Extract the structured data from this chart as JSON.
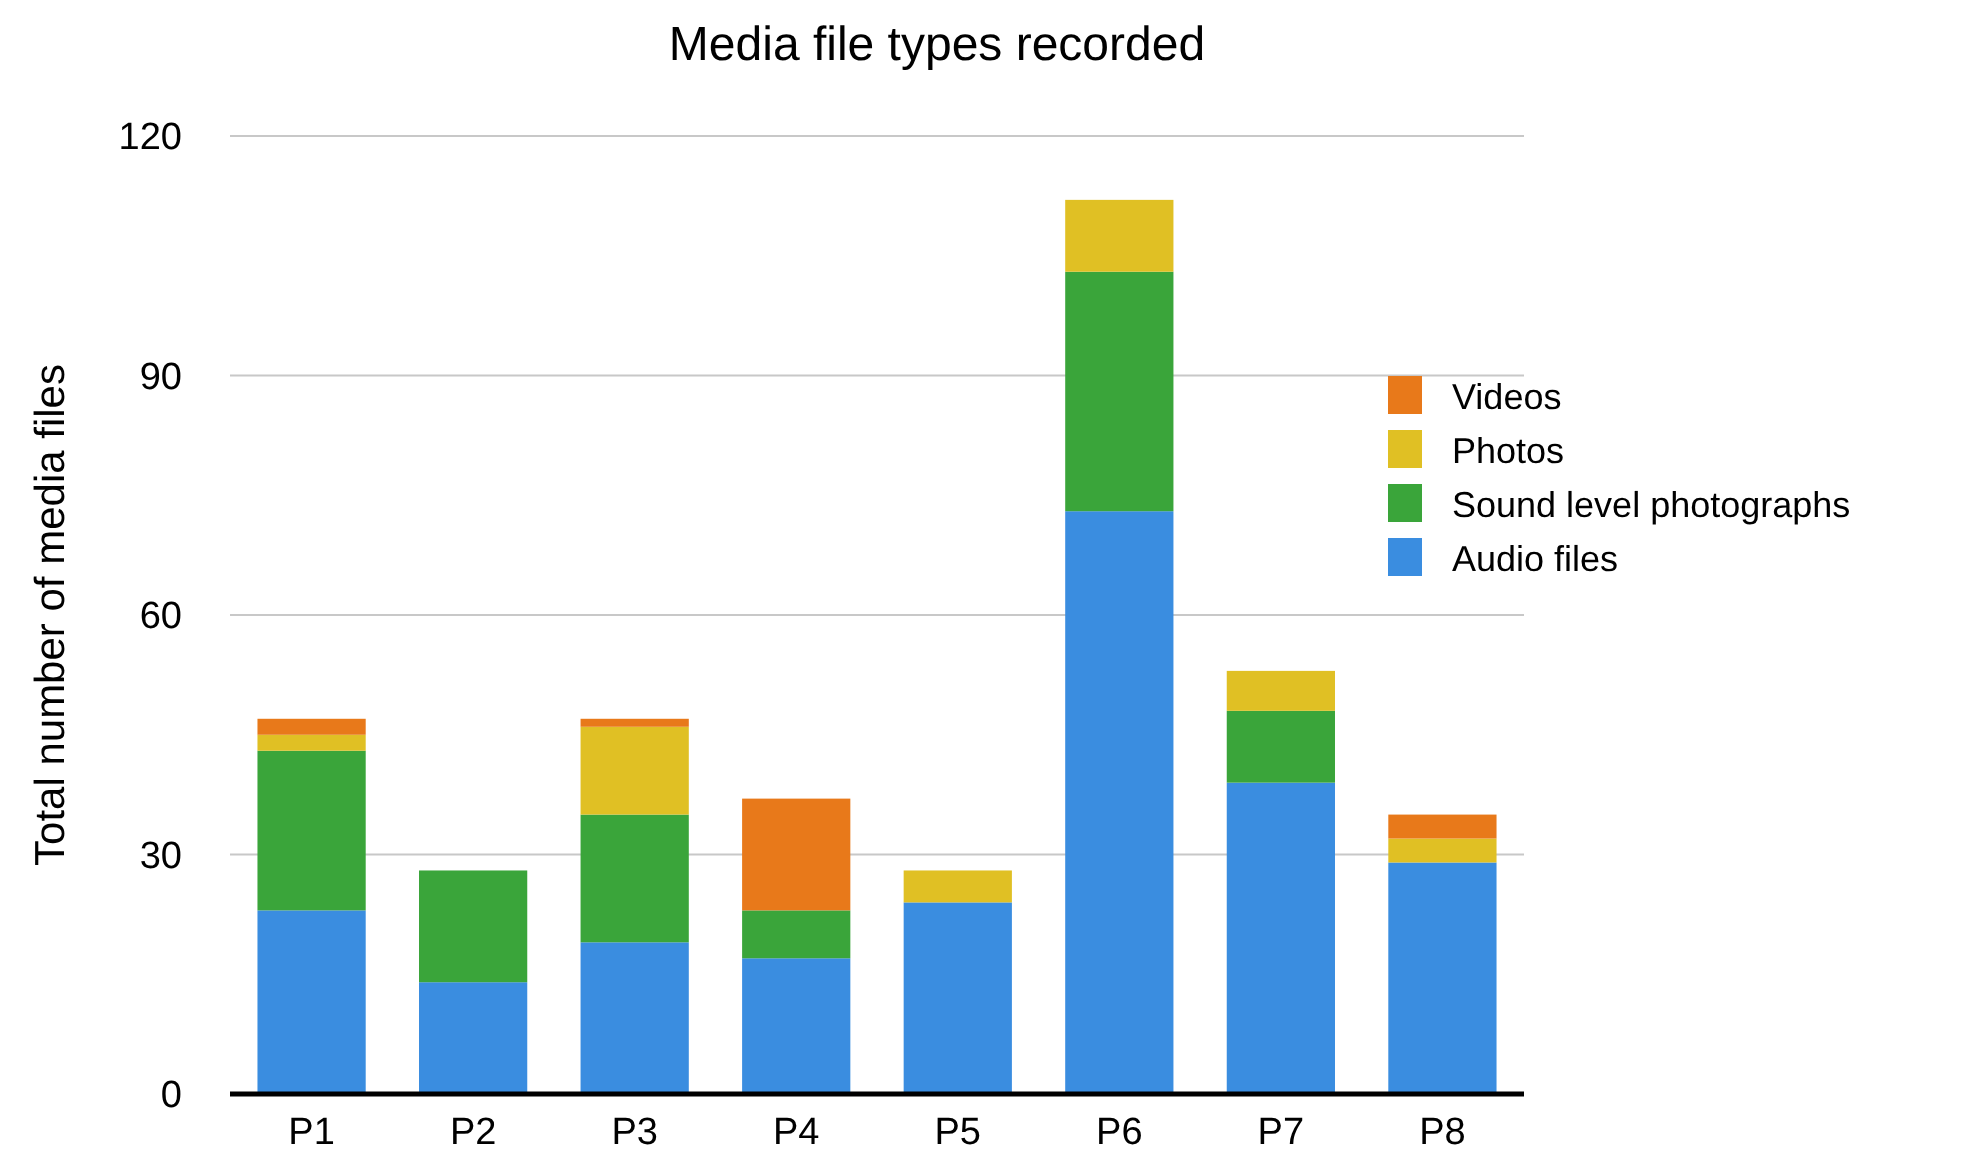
{
  "chart_data": {
    "type": "bar",
    "title": "Media file types recorded",
    "ylabel": "Total number of media files",
    "categories": [
      "P1",
      "P2",
      "P3",
      "P4",
      "P5",
      "P6",
      "P7",
      "P8"
    ],
    "stacked": true,
    "ylim": [
      0,
      120
    ],
    "yticks": [
      0,
      30,
      60,
      90,
      120
    ],
    "grid": "y",
    "legend": "right",
    "series": [
      {
        "name": "Audio files",
        "color": "#3a8de0",
        "values": [
          23,
          14,
          19,
          17,
          24,
          73,
          39,
          29
        ]
      },
      {
        "name": "Sound level photographs",
        "color": "#3aa53a",
        "values": [
          20,
          14,
          16,
          6,
          0,
          30,
          9,
          0
        ]
      },
      {
        "name": "Photos",
        "color": "#e0c024",
        "values": [
          2,
          0,
          11,
          0,
          4,
          9,
          5,
          3
        ]
      },
      {
        "name": "Videos",
        "color": "#e8791a",
        "values": [
          2,
          0,
          1,
          14,
          0,
          0,
          0,
          3
        ]
      }
    ]
  }
}
